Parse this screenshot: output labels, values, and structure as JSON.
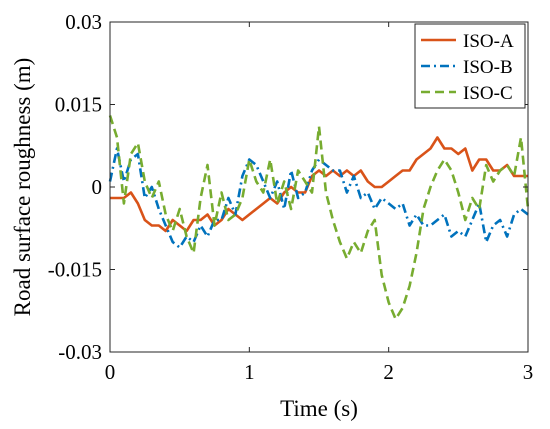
{
  "chart_data": {
    "type": "line",
    "xlabel": "Time (s)",
    "ylabel": "Road surface roughness (m)",
    "xlim": [
      0,
      3
    ],
    "ylim": [
      -0.03,
      0.03
    ],
    "xticks": [
      0,
      1,
      2,
      3
    ],
    "xtick_labels": [
      "0",
      "1",
      "2",
      "3"
    ],
    "yticks": [
      -0.03,
      -0.015,
      0,
      0.015,
      0.03
    ],
    "ytick_labels": [
      "-0.03",
      "-0.015",
      "0",
      "0.015",
      "0.03"
    ],
    "grid": false,
    "legend_position": "top-right",
    "series": [
      {
        "name": "ISO-A",
        "color": "#D95319",
        "dash": "solid",
        "x": [
          0,
          0.05,
          0.1,
          0.15,
          0.2,
          0.25,
          0.3,
          0.35,
          0.4,
          0.45,
          0.5,
          0.55,
          0.6,
          0.65,
          0.7,
          0.75,
          0.8,
          0.85,
          0.9,
          0.95,
          1.0,
          1.05,
          1.1,
          1.15,
          1.2,
          1.25,
          1.3,
          1.35,
          1.4,
          1.45,
          1.5,
          1.55,
          1.6,
          1.65,
          1.7,
          1.75,
          1.8,
          1.85,
          1.9,
          1.95,
          2.0,
          2.05,
          2.1,
          2.15,
          2.2,
          2.25,
          2.3,
          2.35,
          2.4,
          2.45,
          2.5,
          2.55,
          2.6,
          2.65,
          2.7,
          2.75,
          2.8,
          2.85,
          2.9,
          2.95,
          3.0
        ],
        "y": [
          -0.002,
          -0.002,
          -0.002,
          -0.001,
          -0.003,
          -0.006,
          -0.007,
          -0.007,
          -0.008,
          -0.006,
          -0.007,
          -0.008,
          -0.006,
          -0.006,
          -0.005,
          -0.007,
          -0.006,
          -0.004,
          -0.005,
          -0.006,
          -0.005,
          -0.004,
          -0.003,
          -0.002,
          -0.003,
          -0.001,
          0.0,
          -0.001,
          -0.001,
          0.002,
          0.003,
          0.002,
          0.003,
          0.002,
          0.003,
          0.002,
          0.003,
          0.001,
          0.0,
          0.0,
          0.001,
          0.002,
          0.003,
          0.003,
          0.005,
          0.006,
          0.007,
          0.009,
          0.007,
          0.007,
          0.006,
          0.007,
          0.003,
          0.005,
          0.005,
          0.003,
          0.003,
          0.004,
          0.002,
          0.002,
          0.002
        ]
      },
      {
        "name": "ISO-B",
        "color": "#0072BD",
        "dash": "dashdot",
        "x": [
          0,
          0.05,
          0.1,
          0.15,
          0.2,
          0.25,
          0.3,
          0.35,
          0.4,
          0.45,
          0.5,
          0.55,
          0.6,
          0.65,
          0.7,
          0.75,
          0.8,
          0.85,
          0.9,
          0.95,
          1.0,
          1.05,
          1.1,
          1.15,
          1.2,
          1.25,
          1.3,
          1.35,
          1.4,
          1.45,
          1.5,
          1.55,
          1.6,
          1.65,
          1.7,
          1.75,
          1.8,
          1.85,
          1.9,
          1.95,
          2.0,
          2.05,
          2.1,
          2.15,
          2.2,
          2.25,
          2.3,
          2.35,
          2.4,
          2.45,
          2.5,
          2.55,
          2.6,
          2.65,
          2.7,
          2.75,
          2.8,
          2.85,
          2.9,
          2.95,
          3.0
        ],
        "y": [
          0.001,
          0.007,
          0.001,
          0.005,
          0.006,
          -0.002,
          0.0,
          -0.004,
          -0.007,
          -0.01,
          -0.011,
          -0.009,
          -0.01,
          -0.007,
          -0.009,
          -0.006,
          -0.006,
          -0.002,
          -0.005,
          0.002,
          0.005,
          0.004,
          0.001,
          -0.002,
          0.001,
          -0.004,
          0.003,
          -0.002,
          -0.001,
          0.003,
          0.005,
          0.004,
          0.003,
          0.003,
          -0.001,
          0.002,
          -0.002,
          -0.001,
          -0.004,
          -0.002,
          -0.003,
          -0.004,
          -0.003,
          -0.007,
          -0.005,
          -0.007,
          -0.007,
          -0.006,
          -0.005,
          -0.009,
          -0.008,
          -0.009,
          -0.006,
          -0.003,
          -0.01,
          -0.007,
          -0.006,
          -0.009,
          -0.005,
          -0.004,
          -0.005
        ]
      },
      {
        "name": "ISO-C",
        "color": "#77AC30",
        "dash": "dashed",
        "x": [
          0,
          0.05,
          0.1,
          0.15,
          0.2,
          0.25,
          0.3,
          0.35,
          0.4,
          0.45,
          0.5,
          0.55,
          0.6,
          0.65,
          0.7,
          0.75,
          0.8,
          0.85,
          0.9,
          0.95,
          1.0,
          1.05,
          1.1,
          1.15,
          1.2,
          1.25,
          1.3,
          1.35,
          1.4,
          1.45,
          1.5,
          1.55,
          1.6,
          1.65,
          1.7,
          1.75,
          1.8,
          1.85,
          1.9,
          1.95,
          2.0,
          2.05,
          2.1,
          2.15,
          2.2,
          2.25,
          2.3,
          2.35,
          2.4,
          2.45,
          2.5,
          2.55,
          2.6,
          2.65,
          2.7,
          2.75,
          2.8,
          2.85,
          2.9,
          2.95,
          3.0
        ],
        "y": [
          0.013,
          0.009,
          -0.003,
          0.006,
          0.008,
          0.001,
          -0.002,
          0.001,
          -0.005,
          -0.008,
          -0.004,
          -0.009,
          -0.012,
          -0.002,
          0.004,
          -0.007,
          -0.001,
          -0.006,
          -0.005,
          -0.002,
          0.005,
          0.001,
          -0.001,
          0.005,
          -0.003,
          0.001,
          -0.004,
          0.003,
          0.001,
          -0.001,
          0.011,
          -0.001,
          -0.006,
          -0.01,
          -0.013,
          -0.01,
          -0.012,
          -0.008,
          -0.006,
          -0.016,
          -0.021,
          -0.024,
          -0.022,
          -0.018,
          -0.012,
          -0.004,
          0.0,
          0.003,
          0.005,
          0.003,
          -0.001,
          -0.006,
          -0.002,
          -0.004,
          0.004,
          0.001,
          0.003,
          0.004,
          0.002,
          0.009,
          -0.004
        ]
      }
    ]
  }
}
